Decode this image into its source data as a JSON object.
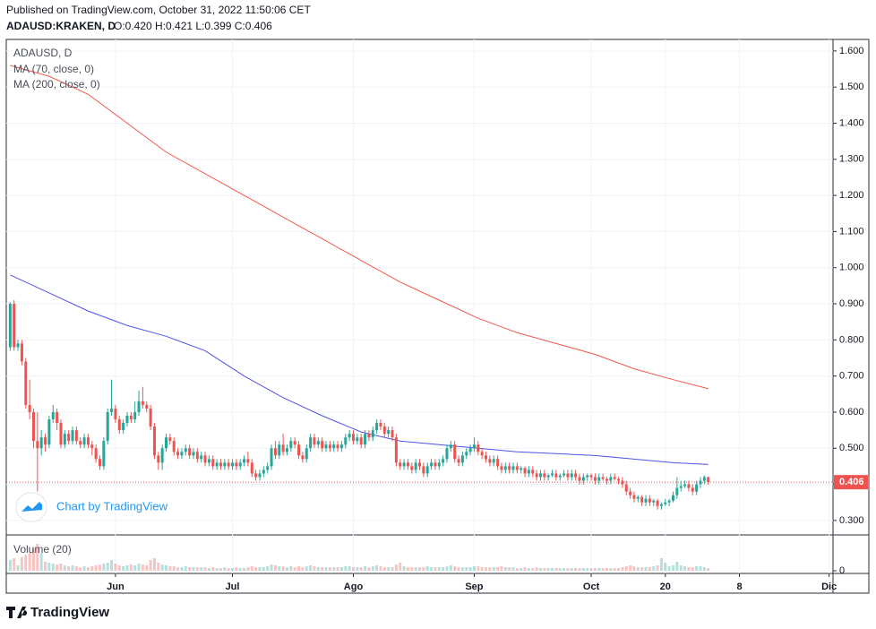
{
  "header": {
    "published": "Published on TradingView.com, October 31, 2022 11:50:06 CET",
    "symbol": "ADAUSD:KRAKEN, D",
    "quote": "O:0.420 H:0.421 L:0.399 C:0.406",
    "watermark": "Chart by TradingView",
    "logo": "TradingView"
  },
  "chart_data": {
    "type": "candlestick",
    "legend_title": "ADAUSD, D",
    "up_color": "#26a69a",
    "down_color": "#ef5350",
    "grid": true,
    "xlim": [
      -1,
      211
    ],
    "xticks": [
      {
        "value": 27,
        "label": "Jun"
      },
      {
        "value": 57,
        "label": "Jul"
      },
      {
        "value": 88,
        "label": "Ago"
      },
      {
        "value": 119,
        "label": "Sep"
      },
      {
        "value": 149,
        "label": "Oct"
      },
      {
        "value": 168,
        "label": "20"
      },
      {
        "value": 187,
        "label": "8"
      },
      {
        "value": 210,
        "label": "Dic"
      }
    ],
    "ylim": [
      0.26,
      1.632
    ],
    "yticks": [
      {
        "value": 0.3,
        "label": "0.300"
      },
      {
        "value": 0.4,
        "label": "0.400"
      },
      {
        "value": 0.5,
        "label": "0.500"
      },
      {
        "value": 0.6,
        "label": "0.600"
      },
      {
        "value": 0.7,
        "label": "0.700"
      },
      {
        "value": 0.8,
        "label": "0.800"
      },
      {
        "value": 0.9,
        "label": "0.900"
      },
      {
        "value": 1.0,
        "label": "1.000"
      },
      {
        "value": 1.1,
        "label": "1.100"
      },
      {
        "value": 1.2,
        "label": "1.200"
      },
      {
        "value": 1.3,
        "label": "1.300"
      },
      {
        "value": 1.4,
        "label": "1.400"
      },
      {
        "value": 1.5,
        "label": "1.500"
      },
      {
        "value": 1.6,
        "label": "1.600"
      }
    ],
    "ohlc": [
      [
        0.78,
        0.905,
        0.77,
        0.9
      ],
      [
        0.9,
        0.91,
        0.77,
        0.78
      ],
      [
        0.78,
        0.8,
        0.77,
        0.79
      ],
      [
        0.79,
        0.8,
        0.73,
        0.74
      ],
      [
        0.74,
        0.75,
        0.61,
        0.62
      ],
      [
        0.62,
        0.69,
        0.58,
        0.6
      ],
      [
        0.6,
        0.61,
        0.5,
        0.52
      ],
      [
        0.52,
        0.6,
        0.38,
        0.5
      ],
      [
        0.5,
        0.55,
        0.48,
        0.53
      ],
      [
        0.53,
        0.54,
        0.49,
        0.51
      ],
      [
        0.51,
        0.59,
        0.5,
        0.58
      ],
      [
        0.58,
        0.62,
        0.57,
        0.6
      ],
      [
        0.6,
        0.61,
        0.55,
        0.57
      ],
      [
        0.57,
        0.58,
        0.5,
        0.51
      ],
      [
        0.51,
        0.55,
        0.5,
        0.54
      ],
      [
        0.54,
        0.55,
        0.51,
        0.52
      ],
      [
        0.52,
        0.56,
        0.51,
        0.55
      ],
      [
        0.55,
        0.56,
        0.51,
        0.52
      ],
      [
        0.52,
        0.53,
        0.5,
        0.51
      ],
      [
        0.51,
        0.54,
        0.5,
        0.53
      ],
      [
        0.53,
        0.54,
        0.5,
        0.51
      ],
      [
        0.51,
        0.52,
        0.48,
        0.5
      ],
      [
        0.5,
        0.51,
        0.46,
        0.47
      ],
      [
        0.47,
        0.48,
        0.44,
        0.45
      ],
      [
        0.45,
        0.53,
        0.44,
        0.52
      ],
      [
        0.52,
        0.61,
        0.51,
        0.6
      ],
      [
        0.6,
        0.69,
        0.59,
        0.61
      ],
      [
        0.61,
        0.62,
        0.57,
        0.58
      ],
      [
        0.58,
        0.59,
        0.54,
        0.55
      ],
      [
        0.55,
        0.58,
        0.54,
        0.57
      ],
      [
        0.57,
        0.6,
        0.56,
        0.59
      ],
      [
        0.59,
        0.6,
        0.57,
        0.58
      ],
      [
        0.58,
        0.63,
        0.57,
        0.6
      ],
      [
        0.6,
        0.66,
        0.59,
        0.63
      ],
      [
        0.63,
        0.67,
        0.61,
        0.62
      ],
      [
        0.62,
        0.63,
        0.6,
        0.61
      ],
      [
        0.61,
        0.62,
        0.55,
        0.56
      ],
      [
        0.56,
        0.57,
        0.47,
        0.48
      ],
      [
        0.48,
        0.49,
        0.44,
        0.46
      ],
      [
        0.46,
        0.51,
        0.44,
        0.5
      ],
      [
        0.5,
        0.54,
        0.49,
        0.53
      ],
      [
        0.53,
        0.54,
        0.51,
        0.52
      ],
      [
        0.52,
        0.53,
        0.48,
        0.49
      ],
      [
        0.49,
        0.5,
        0.47,
        0.48
      ],
      [
        0.48,
        0.5,
        0.47,
        0.49
      ],
      [
        0.49,
        0.51,
        0.48,
        0.5
      ],
      [
        0.5,
        0.51,
        0.47,
        0.48
      ],
      [
        0.48,
        0.5,
        0.47,
        0.49
      ],
      [
        0.49,
        0.5,
        0.46,
        0.47
      ],
      [
        0.47,
        0.49,
        0.46,
        0.48
      ],
      [
        0.48,
        0.49,
        0.45,
        0.46
      ],
      [
        0.46,
        0.48,
        0.45,
        0.47
      ],
      [
        0.47,
        0.48,
        0.44,
        0.45
      ],
      [
        0.45,
        0.47,
        0.44,
        0.46
      ],
      [
        0.46,
        0.47,
        0.44,
        0.45
      ],
      [
        0.45,
        0.47,
        0.44,
        0.46
      ],
      [
        0.46,
        0.47,
        0.44,
        0.45
      ],
      [
        0.45,
        0.47,
        0.44,
        0.46
      ],
      [
        0.46,
        0.47,
        0.44,
        0.45
      ],
      [
        0.45,
        0.47,
        0.44,
        0.46
      ],
      [
        0.46,
        0.48,
        0.45,
        0.47
      ],
      [
        0.47,
        0.49,
        0.45,
        0.46
      ],
      [
        0.46,
        0.47,
        0.42,
        0.43
      ],
      [
        0.43,
        0.44,
        0.41,
        0.42
      ],
      [
        0.42,
        0.44,
        0.41,
        0.43
      ],
      [
        0.43,
        0.45,
        0.42,
        0.44
      ],
      [
        0.44,
        0.46,
        0.43,
        0.45
      ],
      [
        0.45,
        0.51,
        0.44,
        0.5
      ],
      [
        0.5,
        0.52,
        0.47,
        0.48
      ],
      [
        0.48,
        0.52,
        0.47,
        0.51
      ],
      [
        0.51,
        0.54,
        0.48,
        0.49
      ],
      [
        0.49,
        0.51,
        0.48,
        0.5
      ],
      [
        0.5,
        0.53,
        0.49,
        0.52
      ],
      [
        0.52,
        0.53,
        0.5,
        0.51
      ],
      [
        0.51,
        0.52,
        0.47,
        0.48
      ],
      [
        0.48,
        0.49,
        0.46,
        0.47
      ],
      [
        0.47,
        0.51,
        0.46,
        0.5
      ],
      [
        0.5,
        0.54,
        0.49,
        0.53
      ],
      [
        0.53,
        0.54,
        0.5,
        0.51
      ],
      [
        0.51,
        0.53,
        0.5,
        0.52
      ],
      [
        0.52,
        0.53,
        0.49,
        0.5
      ],
      [
        0.5,
        0.52,
        0.49,
        0.51
      ],
      [
        0.51,
        0.52,
        0.49,
        0.5
      ],
      [
        0.5,
        0.52,
        0.49,
        0.51
      ],
      [
        0.51,
        0.52,
        0.49,
        0.5
      ],
      [
        0.5,
        0.52,
        0.49,
        0.51
      ],
      [
        0.51,
        0.54,
        0.5,
        0.53
      ],
      [
        0.53,
        0.55,
        0.52,
        0.54
      ],
      [
        0.54,
        0.55,
        0.51,
        0.52
      ],
      [
        0.52,
        0.54,
        0.51,
        0.53
      ],
      [
        0.53,
        0.54,
        0.5,
        0.51
      ],
      [
        0.51,
        0.55,
        0.5,
        0.54
      ],
      [
        0.54,
        0.55,
        0.52,
        0.53
      ],
      [
        0.53,
        0.56,
        0.52,
        0.55
      ],
      [
        0.55,
        0.58,
        0.54,
        0.57
      ],
      [
        0.57,
        0.58,
        0.55,
        0.56
      ],
      [
        0.56,
        0.57,
        0.53,
        0.54
      ],
      [
        0.54,
        0.56,
        0.53,
        0.55
      ],
      [
        0.55,
        0.56,
        0.52,
        0.53
      ],
      [
        0.53,
        0.54,
        0.45,
        0.46
      ],
      [
        0.46,
        0.47,
        0.44,
        0.45
      ],
      [
        0.45,
        0.47,
        0.44,
        0.46
      ],
      [
        0.46,
        0.47,
        0.44,
        0.45
      ],
      [
        0.45,
        0.46,
        0.43,
        0.44
      ],
      [
        0.44,
        0.47,
        0.43,
        0.46
      ],
      [
        0.46,
        0.47,
        0.44,
        0.45
      ],
      [
        0.45,
        0.46,
        0.42,
        0.43
      ],
      [
        0.43,
        0.46,
        0.42,
        0.45
      ],
      [
        0.45,
        0.47,
        0.44,
        0.46
      ],
      [
        0.46,
        0.47,
        0.44,
        0.45
      ],
      [
        0.45,
        0.47,
        0.44,
        0.46
      ],
      [
        0.46,
        0.48,
        0.45,
        0.47
      ],
      [
        0.47,
        0.51,
        0.46,
        0.5
      ],
      [
        0.5,
        0.52,
        0.49,
        0.51
      ],
      [
        0.51,
        0.52,
        0.46,
        0.47
      ],
      [
        0.47,
        0.48,
        0.45,
        0.46
      ],
      [
        0.46,
        0.49,
        0.45,
        0.48
      ],
      [
        0.48,
        0.5,
        0.47,
        0.49
      ],
      [
        0.49,
        0.51,
        0.48,
        0.5
      ],
      [
        0.5,
        0.53,
        0.49,
        0.51
      ],
      [
        0.51,
        0.52,
        0.48,
        0.49
      ],
      [
        0.49,
        0.5,
        0.47,
        0.48
      ],
      [
        0.48,
        0.49,
        0.46,
        0.47
      ],
      [
        0.47,
        0.48,
        0.45,
        0.46
      ],
      [
        0.46,
        0.48,
        0.45,
        0.47
      ],
      [
        0.47,
        0.48,
        0.44,
        0.45
      ],
      [
        0.45,
        0.46,
        0.43,
        0.44
      ],
      [
        0.44,
        0.46,
        0.43,
        0.45
      ],
      [
        0.45,
        0.46,
        0.43,
        0.44
      ],
      [
        0.44,
        0.46,
        0.43,
        0.45
      ],
      [
        0.45,
        0.46,
        0.43,
        0.44
      ],
      [
        0.44,
        0.45,
        0.43,
        0.445
      ],
      [
        0.445,
        0.45,
        0.42,
        0.43
      ],
      [
        0.43,
        0.45,
        0.42,
        0.44
      ],
      [
        0.44,
        0.45,
        0.42,
        0.43
      ],
      [
        0.43,
        0.44,
        0.41,
        0.42
      ],
      [
        0.42,
        0.44,
        0.41,
        0.43
      ],
      [
        0.43,
        0.44,
        0.41,
        0.42
      ],
      [
        0.42,
        0.43,
        0.41,
        0.425
      ],
      [
        0.425,
        0.44,
        0.42,
        0.43
      ],
      [
        0.43,
        0.44,
        0.41,
        0.42
      ],
      [
        0.42,
        0.43,
        0.41,
        0.425
      ],
      [
        0.425,
        0.44,
        0.42,
        0.43
      ],
      [
        0.43,
        0.44,
        0.41,
        0.42
      ],
      [
        0.42,
        0.44,
        0.41,
        0.43
      ],
      [
        0.43,
        0.44,
        0.41,
        0.42
      ],
      [
        0.42,
        0.43,
        0.4,
        0.41
      ],
      [
        0.41,
        0.43,
        0.4,
        0.42
      ],
      [
        0.42,
        0.43,
        0.41,
        0.425
      ],
      [
        0.425,
        0.43,
        0.41,
        0.42
      ],
      [
        0.42,
        0.43,
        0.4,
        0.41
      ],
      [
        0.41,
        0.43,
        0.4,
        0.42
      ],
      [
        0.42,
        0.43,
        0.41,
        0.415
      ],
      [
        0.415,
        0.42,
        0.4,
        0.41
      ],
      [
        0.41,
        0.43,
        0.4,
        0.42
      ],
      [
        0.42,
        0.43,
        0.41,
        0.415
      ],
      [
        0.415,
        0.42,
        0.4,
        0.41
      ],
      [
        0.41,
        0.42,
        0.39,
        0.4
      ],
      [
        0.4,
        0.41,
        0.37,
        0.38
      ],
      [
        0.38,
        0.39,
        0.36,
        0.37
      ],
      [
        0.37,
        0.38,
        0.35,
        0.36
      ],
      [
        0.36,
        0.37,
        0.35,
        0.365
      ],
      [
        0.365,
        0.37,
        0.34,
        0.35
      ],
      [
        0.35,
        0.37,
        0.34,
        0.36
      ],
      [
        0.36,
        0.37,
        0.34,
        0.35
      ],
      [
        0.35,
        0.36,
        0.34,
        0.355
      ],
      [
        0.355,
        0.36,
        0.33,
        0.34
      ],
      [
        0.34,
        0.35,
        0.33,
        0.345
      ],
      [
        0.345,
        0.36,
        0.34,
        0.35
      ],
      [
        0.35,
        0.36,
        0.34,
        0.355
      ],
      [
        0.355,
        0.38,
        0.35,
        0.37
      ],
      [
        0.37,
        0.42,
        0.36,
        0.39
      ],
      [
        0.39,
        0.41,
        0.38,
        0.395
      ],
      [
        0.395,
        0.41,
        0.39,
        0.4
      ],
      [
        0.4,
        0.41,
        0.38,
        0.39
      ],
      [
        0.39,
        0.4,
        0.37,
        0.38
      ],
      [
        0.38,
        0.41,
        0.37,
        0.4
      ],
      [
        0.4,
        0.42,
        0.39,
        0.41
      ],
      [
        0.41,
        0.425,
        0.4,
        0.42
      ],
      [
        0.42,
        0.421,
        0.399,
        0.406
      ]
    ],
    "ma": [
      {
        "name": "MA (70, close, 0)",
        "color": "#f0584c",
        "x": [
          0,
          10,
          20,
          30,
          40,
          50,
          60,
          70,
          80,
          90,
          100,
          110,
          120,
          130,
          140,
          150,
          160,
          170,
          179
        ],
        "values": [
          1.56,
          1.53,
          1.48,
          1.4,
          1.32,
          1.26,
          1.2,
          1.14,
          1.08,
          1.02,
          0.96,
          0.91,
          0.86,
          0.82,
          0.79,
          0.76,
          0.72,
          0.69,
          0.665
        ]
      },
      {
        "name": "MA (200, close, 0)",
        "color": "#4c54e8",
        "x": [
          0,
          10,
          20,
          30,
          40,
          50,
          60,
          70,
          80,
          90,
          100,
          110,
          120,
          130,
          140,
          150,
          160,
          170,
          179
        ],
        "values": [
          0.98,
          0.93,
          0.88,
          0.84,
          0.81,
          0.77,
          0.7,
          0.64,
          0.59,
          0.545,
          0.52,
          0.51,
          0.5,
          0.49,
          0.485,
          0.48,
          0.47,
          0.46,
          0.455
        ]
      }
    ],
    "volume_title": "Volume (20)",
    "vlim": [
      -3,
      40
    ],
    "vticks": [
      0
    ],
    "volume": [
      12,
      14,
      6,
      15,
      18,
      20,
      25,
      30,
      20,
      10,
      9,
      8,
      7,
      8,
      6,
      5,
      6,
      5,
      4,
      5,
      4,
      5,
      6,
      7,
      8,
      9,
      12,
      8,
      6,
      5,
      6,
      7,
      6,
      8,
      7,
      6,
      12,
      14,
      9,
      7,
      6,
      5,
      5,
      4,
      4,
      5,
      4,
      4,
      4,
      4,
      4,
      3,
      4,
      3,
      3,
      4,
      3,
      3,
      4,
      3,
      3,
      4,
      5,
      4,
      4,
      4,
      5,
      7,
      6,
      5,
      5,
      4,
      5,
      4,
      5,
      4,
      5,
      6,
      5,
      4,
      4,
      4,
      4,
      4,
      4,
      4,
      5,
      5,
      4,
      4,
      4,
      5,
      4,
      5,
      6,
      5,
      4,
      4,
      4,
      7,
      9,
      5,
      4,
      4,
      4,
      4,
      4,
      5,
      4,
      4,
      4,
      4,
      5,
      6,
      5,
      4,
      4,
      4,
      4,
      5,
      5,
      4,
      4,
      4,
      4,
      4,
      5,
      4,
      4,
      4,
      3,
      3,
      4,
      3,
      3,
      4,
      3,
      3,
      3,
      3,
      3,
      3,
      3,
      3,
      3,
      3,
      3,
      3,
      3,
      3,
      3,
      3,
      3,
      3,
      3,
      3,
      3,
      4,
      5,
      6,
      5,
      4,
      4,
      4,
      4,
      5,
      6,
      14,
      9,
      5,
      6,
      10,
      6,
      5,
      4,
      4,
      5,
      5,
      4,
      3
    ]
  }
}
